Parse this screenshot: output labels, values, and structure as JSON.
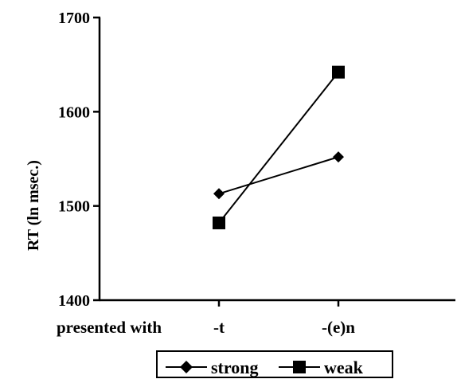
{
  "chart_data": {
    "type": "line",
    "ylabel": "RT (ln msec.)",
    "xlabel_lead": "presented with",
    "categories": [
      "-t",
      "-(e)n"
    ],
    "ylim": [
      1400,
      1700
    ],
    "yticks": [
      1400,
      1500,
      1600,
      1700
    ],
    "ytick_labels": [
      "1400",
      "1500",
      "1600",
      "1700"
    ],
    "grid": false,
    "legend_position": "bottom",
    "series": [
      {
        "name": "strong",
        "marker": "diamond",
        "values": [
          1513,
          1552
        ]
      },
      {
        "name": "weak",
        "marker": "square",
        "values": [
          1482,
          1642
        ]
      }
    ],
    "colors": {
      "line": "#000000",
      "background": "#ffffff"
    }
  }
}
